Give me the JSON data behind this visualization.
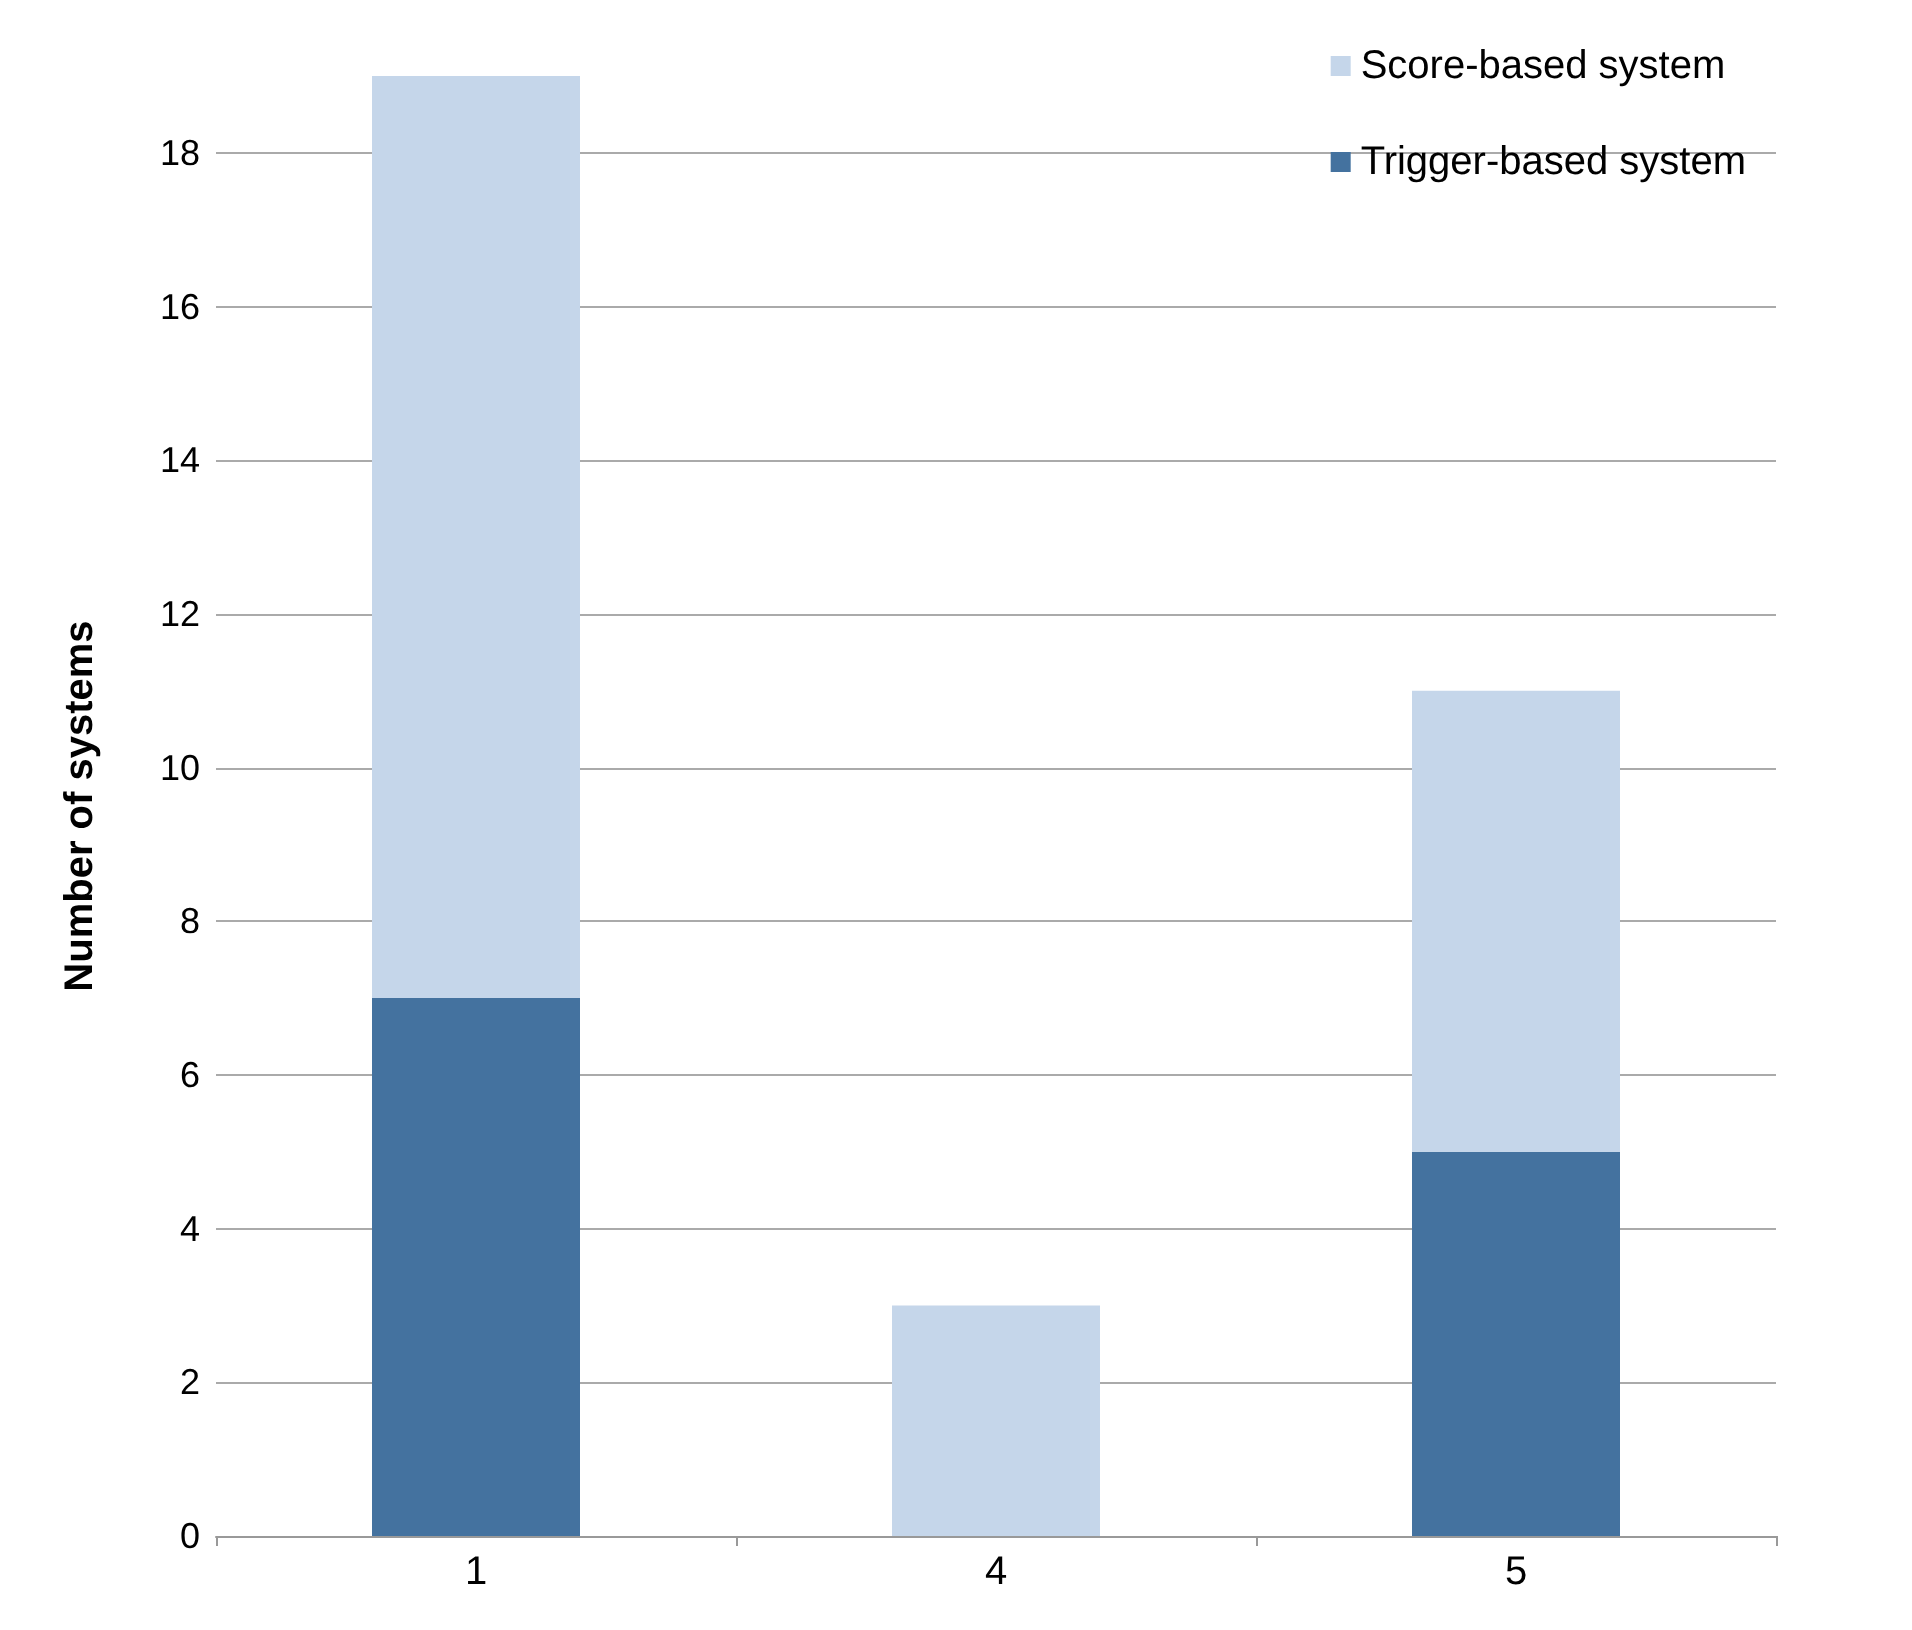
{
  "chart_data": {
    "type": "bar",
    "ylabel": "Number of systems",
    "categories": [
      "1",
      "4",
      "5"
    ],
    "stacked": true,
    "series": [
      {
        "name": "Trigger-based system",
        "color": "#44729f",
        "values": [
          7,
          0,
          5
        ]
      },
      {
        "name": "Score-based system",
        "color": "#c5d6ea",
        "values": [
          12,
          3,
          6
        ]
      }
    ],
    "ylim": [
      0,
      19
    ],
    "yticks": [
      0,
      2,
      4,
      6,
      8,
      10,
      12,
      14,
      16,
      18
    ],
    "grid": "y",
    "legend": "top right"
  }
}
